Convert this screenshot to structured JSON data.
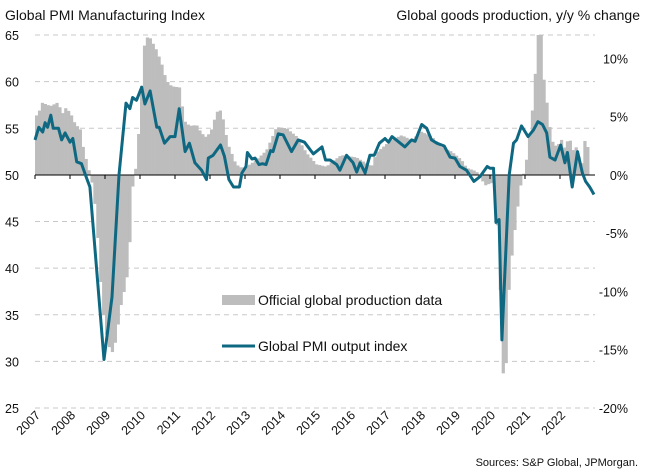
{
  "chart_data": {
    "type": "bar+line",
    "title_left": "Global PMI Manufacturing Index",
    "title_right": "Global goods production, y/y % change",
    "left_axis": {
      "ylim": [
        25,
        65
      ],
      "ticks": [
        "65",
        "60",
        "55",
        "50",
        "45",
        "40",
        "35",
        "30",
        "25"
      ],
      "tick_values": [
        65,
        60,
        55,
        50,
        45,
        40,
        35,
        30,
        25
      ]
    },
    "right_axis": {
      "ylim": [
        -20,
        12
      ],
      "ticks": [
        "10%",
        "5%",
        "0%",
        "-5%",
        "-10%",
        "-15%",
        "-20%"
      ],
      "tick_values": [
        10,
        5,
        0,
        -5,
        -10,
        -15,
        -20
      ]
    },
    "x_ticks": [
      "2007",
      "2008",
      "2009",
      "2010",
      "2011",
      "2012",
      "2013",
      "2014",
      "2015",
      "2016",
      "2017",
      "2018",
      "2019",
      "2020",
      "2021",
      "2022"
    ],
    "xlim": [
      2007,
      2023
    ],
    "grid": true,
    "legend": {
      "placement": "center-bottom",
      "entries": [
        "Official global production data",
        "Global PMI output index"
      ]
    },
    "source": "Sources: S&P Global, JPMorgan.",
    "colors": {
      "bars": "#bdbdbd",
      "line": "#0f6882"
    },
    "series": [
      {
        "name": "Official global production data",
        "axis": "right",
        "kind": "bar",
        "unit": "% y/y",
        "points": [
          [
            2007.0,
            5.1
          ],
          [
            2007.1,
            5.6
          ],
          [
            2007.15,
            6.2
          ],
          [
            2007.4,
            5.9
          ],
          [
            2007.6,
            6.2
          ],
          [
            2007.75,
            5.3
          ],
          [
            2007.85,
            5.8
          ],
          [
            2008.0,
            5.1
          ],
          [
            2008.1,
            4.4
          ],
          [
            2008.25,
            3.9
          ],
          [
            2008.35,
            2.1
          ],
          [
            2008.45,
            1.0
          ],
          [
            2008.55,
            -0.2
          ],
          [
            2008.63,
            -1.3
          ],
          [
            2008.71,
            -3.9
          ],
          [
            2008.8,
            -7.3
          ],
          [
            2008.86,
            -10.7
          ],
          [
            2008.97,
            -13.3
          ],
          [
            2009.1,
            -15.0
          ],
          [
            2009.2,
            -15.3
          ],
          [
            2009.3,
            -13.5
          ],
          [
            2009.43,
            -10.9
          ],
          [
            2009.57,
            -9.2
          ],
          [
            2009.66,
            -6.4
          ],
          [
            2009.71,
            -1.7
          ],
          [
            2009.83,
            0.4
          ],
          [
            2009.95,
            4.7
          ],
          [
            2010.03,
            9.4
          ],
          [
            2010.09,
            11.3
          ],
          [
            2010.2,
            12.0
          ],
          [
            2010.43,
            10.7
          ],
          [
            2010.57,
            9.6
          ],
          [
            2010.71,
            8.1
          ],
          [
            2010.86,
            7.6
          ],
          [
            2011.09,
            7.5
          ],
          [
            2011.17,
            5.8
          ],
          [
            2011.26,
            4.4
          ],
          [
            2011.43,
            4.2
          ],
          [
            2011.57,
            4.3
          ],
          [
            2011.71,
            3.6
          ],
          [
            2011.86,
            3.2
          ],
          [
            2012.0,
            3.9
          ],
          [
            2012.14,
            5.3
          ],
          [
            2012.23,
            5.7
          ],
          [
            2012.34,
            4.7
          ],
          [
            2012.46,
            2.7
          ],
          [
            2012.57,
            1.9
          ],
          [
            2012.7,
            0.9
          ],
          [
            2012.86,
            0.6
          ],
          [
            2013.0,
            0.7
          ],
          [
            2013.29,
            1.3
          ],
          [
            2013.57,
            2.1
          ],
          [
            2013.86,
            4.1
          ],
          [
            2014.14,
            4.0
          ],
          [
            2014.43,
            3.3
          ],
          [
            2014.71,
            1.9
          ],
          [
            2015.0,
            0.9
          ],
          [
            2015.29,
            0.7
          ],
          [
            2015.43,
            1.1
          ],
          [
            2015.71,
            1.7
          ],
          [
            2016.14,
            1.5
          ],
          [
            2016.57,
            0.7
          ],
          [
            2016.71,
            1.9
          ],
          [
            2017.14,
            3.0
          ],
          [
            2017.43,
            3.4
          ],
          [
            2017.71,
            3.0
          ],
          [
            2018.0,
            3.7
          ],
          [
            2018.29,
            3.3
          ],
          [
            2018.57,
            2.4
          ],
          [
            2018.86,
            2.0
          ],
          [
            2019.14,
            1.3
          ],
          [
            2019.29,
            0.6
          ],
          [
            2019.57,
            0.3
          ],
          [
            2019.71,
            -0.4
          ],
          [
            2019.86,
            -1.0
          ],
          [
            2019.97,
            -0.6
          ],
          [
            2020.08,
            -1.0
          ],
          [
            2020.2,
            -5.6
          ],
          [
            2020.34,
            -17.6
          ],
          [
            2020.43,
            -15.9
          ],
          [
            2020.51,
            -9.0
          ],
          [
            2020.63,
            -5.6
          ],
          [
            2020.74,
            -3.0
          ],
          [
            2020.8,
            -1.3
          ],
          [
            2020.91,
            0.0
          ],
          [
            2021.0,
            1.3
          ],
          [
            2021.14,
            4.9
          ],
          [
            2021.23,
            7.0
          ],
          [
            2021.29,
            12.0
          ],
          [
            2021.43,
            12.0
          ],
          [
            2021.49,
            8.4
          ],
          [
            2021.6,
            5.8
          ],
          [
            2021.71,
            3.0
          ],
          [
            2021.86,
            2.4
          ],
          [
            2022.0,
            3.0
          ],
          [
            2022.14,
            1.9
          ],
          [
            2022.2,
            4.1
          ],
          [
            2022.29,
            2.0
          ],
          [
            2022.43,
            2.4
          ],
          [
            2022.57,
            0.7
          ],
          [
            2022.71,
            3.9
          ],
          [
            2022.8,
            0.5
          ]
        ]
      },
      {
        "name": "Global PMI output index",
        "axis": "left",
        "kind": "line",
        "unit": "index",
        "points": [
          [
            2007.0,
            53.75
          ],
          [
            2007.11,
            55.1
          ],
          [
            2007.22,
            54.6
          ],
          [
            2007.29,
            55.6
          ],
          [
            2007.36,
            55.1
          ],
          [
            2007.45,
            56.4
          ],
          [
            2007.52,
            55.0
          ],
          [
            2007.67,
            55.0
          ],
          [
            2007.76,
            53.75
          ],
          [
            2007.86,
            54.5
          ],
          [
            2008.0,
            53.5
          ],
          [
            2008.08,
            53.9
          ],
          [
            2008.19,
            51.4
          ],
          [
            2008.33,
            51.2
          ],
          [
            2008.46,
            49.8
          ],
          [
            2008.57,
            48.7
          ],
          [
            2008.97,
            30.2
          ],
          [
            2009.2,
            36.9
          ],
          [
            2009.4,
            50.0
          ],
          [
            2009.6,
            57.7
          ],
          [
            2009.71,
            57.1
          ],
          [
            2009.79,
            58.3
          ],
          [
            2009.9,
            58.0
          ],
          [
            2010.05,
            59.4
          ],
          [
            2010.14,
            57.6
          ],
          [
            2010.29,
            59.0
          ],
          [
            2010.48,
            55.1
          ],
          [
            2010.55,
            55.1
          ],
          [
            2010.7,
            53.4
          ],
          [
            2010.86,
            54.1
          ],
          [
            2011.0,
            54.1
          ],
          [
            2011.12,
            57.1
          ],
          [
            2011.29,
            52.5
          ],
          [
            2011.41,
            53.4
          ],
          [
            2011.57,
            51.3
          ],
          [
            2011.76,
            50.5
          ],
          [
            2011.9,
            49.5
          ],
          [
            2011.95,
            51.8
          ],
          [
            2012.09,
            52.1
          ],
          [
            2012.3,
            53.2
          ],
          [
            2012.41,
            52.0
          ],
          [
            2012.54,
            49.5
          ],
          [
            2012.67,
            48.7
          ],
          [
            2012.84,
            48.7
          ],
          [
            2012.91,
            50.2
          ],
          [
            2013.03,
            50.9
          ],
          [
            2013.07,
            52.4
          ],
          [
            2013.2,
            51.7
          ],
          [
            2013.29,
            51.8
          ],
          [
            2013.4,
            51.1
          ],
          [
            2013.5,
            51.2
          ],
          [
            2013.6,
            51.1
          ],
          [
            2013.73,
            52.6
          ],
          [
            2013.8,
            52.5
          ],
          [
            2013.95,
            54.4
          ],
          [
            2014.09,
            54.3
          ],
          [
            2014.33,
            52.5
          ],
          [
            2014.52,
            53.75
          ],
          [
            2014.7,
            53.5
          ],
          [
            2014.95,
            52.25
          ],
          [
            2015.2,
            53.0
          ],
          [
            2015.3,
            51.6
          ],
          [
            2015.43,
            51.6
          ],
          [
            2015.62,
            51.1
          ],
          [
            2015.71,
            50.5
          ],
          [
            2015.9,
            52.1
          ],
          [
            2016.09,
            51.3
          ],
          [
            2016.19,
            50.3
          ],
          [
            2016.29,
            51.3
          ],
          [
            2016.43,
            50.2
          ],
          [
            2016.57,
            52.1
          ],
          [
            2016.69,
            52.1
          ],
          [
            2016.84,
            53.4
          ],
          [
            2017.0,
            53.9
          ],
          [
            2017.1,
            53.5
          ],
          [
            2017.2,
            54.1
          ],
          [
            2017.57,
            53.0
          ],
          [
            2017.76,
            53.75
          ],
          [
            2017.86,
            53.6
          ],
          [
            2018.05,
            55.4
          ],
          [
            2018.19,
            55.0
          ],
          [
            2018.33,
            53.75
          ],
          [
            2018.48,
            53.4
          ],
          [
            2018.69,
            53.1
          ],
          [
            2018.86,
            51.9
          ],
          [
            2019.0,
            51.8
          ],
          [
            2019.14,
            50.9
          ],
          [
            2019.33,
            50.5
          ],
          [
            2019.54,
            49.3
          ],
          [
            2019.71,
            49.8
          ],
          [
            2019.92,
            50.9
          ],
          [
            2020.0,
            50.7
          ],
          [
            2020.1,
            50.7
          ],
          [
            2020.17,
            44.9
          ],
          [
            2020.26,
            45.2
          ],
          [
            2020.34,
            32.3
          ],
          [
            2020.55,
            50.0
          ],
          [
            2020.67,
            53.4
          ],
          [
            2020.76,
            53.75
          ],
          [
            2020.9,
            55.25
          ],
          [
            2021.09,
            54.1
          ],
          [
            2021.24,
            54.8
          ],
          [
            2021.37,
            55.7
          ],
          [
            2021.5,
            55.4
          ],
          [
            2021.62,
            54.5
          ],
          [
            2021.71,
            51.9
          ],
          [
            2021.86,
            51.6
          ],
          [
            2022.02,
            53.2
          ],
          [
            2022.14,
            51.3
          ],
          [
            2022.21,
            52.4
          ],
          [
            2022.3,
            50.0
          ],
          [
            2022.35,
            48.7
          ],
          [
            2022.5,
            52.5
          ],
          [
            2022.64,
            50.2
          ],
          [
            2022.73,
            49.3
          ],
          [
            2022.85,
            48.7
          ],
          [
            2022.97,
            47.9
          ]
        ]
      }
    ]
  }
}
